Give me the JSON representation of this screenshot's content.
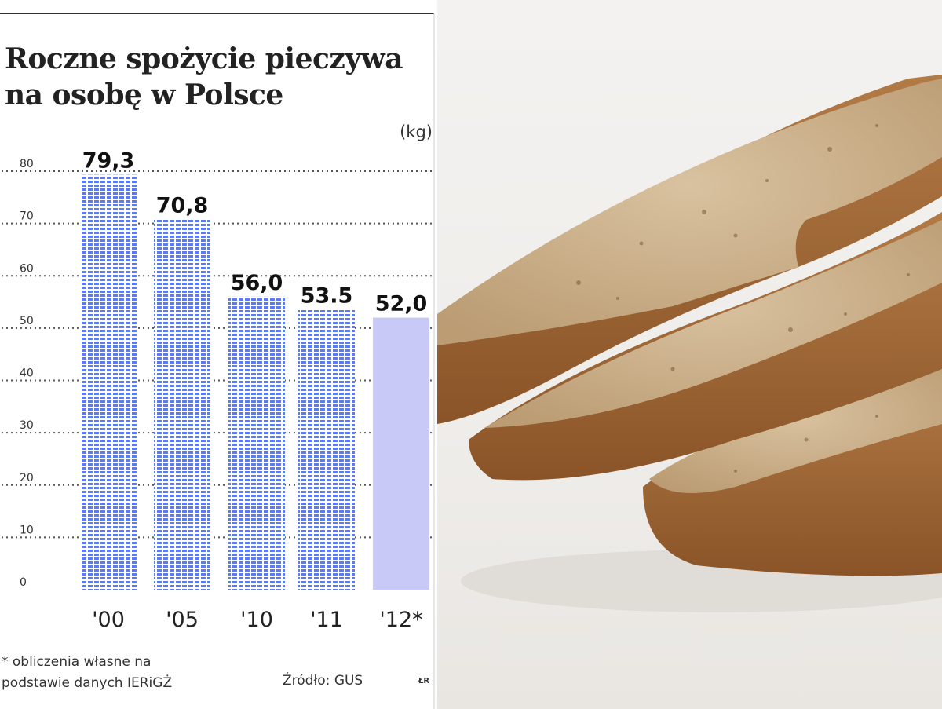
{
  "chart_data": {
    "type": "bar",
    "title_lines": [
      "Roczne spożycie pieczywa",
      "na osobę w Polsce"
    ],
    "unit": "(kg)",
    "categories": [
      "'00",
      "'05",
      "'10",
      "'11",
      "'12*"
    ],
    "values": [
      79.3,
      70.8,
      56.0,
      53.5,
      52.0
    ],
    "value_labels": [
      "79,3",
      "70,8",
      "56,0",
      "53.5",
      "52,0"
    ],
    "estimated": [
      false,
      false,
      false,
      false,
      true
    ],
    "yticks": [
      "0",
      "10",
      "20",
      "30",
      "40",
      "50",
      "60",
      "70",
      "80"
    ],
    "ylim": [
      0,
      80
    ],
    "grid": true,
    "colors": {
      "bar": "#5a7cf0",
      "bar_estimated": "#c9c9f8",
      "grid": "#555555"
    }
  },
  "footnote_lines": [
    "* obliczenia własne na",
    "podstawie danych IERiGŻ"
  ],
  "source": "Źródło: GUS",
  "credit": "ŁR",
  "photo": {
    "subject": "bread-slices-photo"
  }
}
